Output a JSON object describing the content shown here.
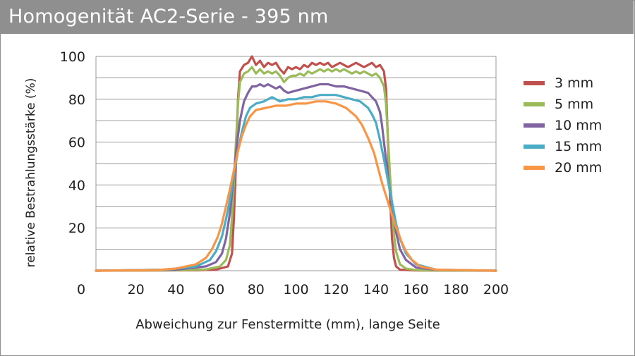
{
  "title": "Homogenität AC2-Serie - 395 nm",
  "chart_data": {
    "type": "line",
    "title": "Homogenität AC2-Serie - 395 nm",
    "xlabel": "Abweichung zur Fenstermitte (mm), lange Seite",
    "ylabel": "relative Bestrahlungsstärke (%)",
    "xlim": [
      0,
      200
    ],
    "ylim": [
      0,
      100
    ],
    "x_ticks": [
      "0",
      "20",
      "40",
      "60",
      "80",
      "100",
      "120",
      "140",
      "160",
      "180",
      "200"
    ],
    "y_ticks": [
      "20",
      "40",
      "60",
      "80",
      "100"
    ],
    "grid": "horizontal",
    "legend_position": "right",
    "series": [
      {
        "name": "3 mm",
        "color": "#c0504d",
        "x": [
          0,
          50,
          60,
          66,
          68,
          69,
          70,
          71,
          72,
          74,
          76,
          78,
          80,
          82,
          84,
          86,
          88,
          90,
          92,
          94,
          96,
          98,
          100,
          102,
          104,
          106,
          108,
          110,
          112,
          114,
          116,
          118,
          120,
          122,
          124,
          126,
          128,
          130,
          132,
          134,
          136,
          138,
          140,
          142,
          144,
          145,
          146,
          147,
          148,
          149,
          150,
          152,
          160,
          200
        ],
        "y": [
          0,
          0.2,
          0.5,
          2,
          8,
          25,
          50,
          80,
          93,
          96,
          97,
          100,
          96,
          98,
          95,
          97,
          96,
          97,
          94,
          92,
          95,
          94,
          95,
          94,
          96,
          95,
          97,
          96,
          97,
          96,
          97,
          95,
          96,
          97,
          96,
          95,
          96,
          97,
          96,
          95,
          96,
          97,
          95,
          96,
          93,
          85,
          60,
          35,
          15,
          6,
          2,
          0.5,
          0.1,
          0
        ]
      },
      {
        "name": "5 mm",
        "color": "#9bbb59",
        "x": [
          0,
          40,
          55,
          62,
          65,
          67,
          68,
          69,
          70,
          71,
          72,
          74,
          76,
          78,
          80,
          82,
          84,
          86,
          88,
          90,
          92,
          94,
          96,
          98,
          100,
          102,
          104,
          106,
          108,
          110,
          112,
          114,
          116,
          118,
          120,
          122,
          124,
          126,
          128,
          130,
          132,
          134,
          136,
          138,
          140,
          142,
          144,
          145,
          146,
          147,
          148,
          149,
          150,
          152,
          155,
          160,
          170,
          200
        ],
        "y": [
          0,
          0.2,
          0.6,
          2,
          5,
          12,
          25,
          42,
          60,
          78,
          88,
          92,
          93,
          95,
          92,
          94,
          92,
          93,
          92,
          93,
          91,
          88,
          90,
          91,
          91,
          92,
          91,
          93,
          92,
          93,
          94,
          93,
          94,
          93,
          94,
          93,
          94,
          93,
          92,
          93,
          92,
          93,
          92,
          91,
          92,
          90,
          86,
          78,
          62,
          45,
          30,
          17,
          9,
          3,
          1,
          0.3,
          0.1,
          0
        ]
      },
      {
        "name": "10 mm",
        "color": "#8064a2",
        "x": [
          0,
          40,
          55,
          60,
          63,
          65,
          67,
          68,
          69,
          70,
          71,
          72,
          74,
          76,
          78,
          80,
          82,
          84,
          86,
          88,
          90,
          92,
          94,
          96,
          100,
          104,
          108,
          112,
          116,
          120,
          124,
          128,
          132,
          136,
          138,
          140,
          142,
          143,
          144,
          145,
          146,
          147,
          148,
          149,
          150,
          152,
          155,
          160,
          170,
          200
        ],
        "y": [
          0,
          0.5,
          2,
          4,
          8,
          15,
          27,
          36,
          45,
          55,
          63,
          70,
          79,
          83,
          86,
          86,
          87,
          86,
          87,
          86,
          85,
          86,
          84,
          83,
          84,
          85,
          86,
          87,
          87,
          86,
          86,
          85,
          84,
          83,
          81,
          79,
          74,
          68,
          60,
          52,
          44,
          37,
          31,
          24,
          18,
          10,
          5,
          1.5,
          0.4,
          0
        ]
      },
      {
        "name": "15 mm",
        "color": "#4bacc6",
        "x": [
          0,
          35,
          50,
          57,
          60,
          63,
          65,
          67,
          69,
          71,
          73,
          75,
          77,
          80,
          84,
          88,
          92,
          96,
          100,
          104,
          108,
          112,
          116,
          120,
          124,
          128,
          132,
          136,
          138,
          140,
          142,
          144,
          146,
          148,
          150,
          152,
          155,
          160,
          170,
          200
        ],
        "y": [
          0,
          0.5,
          2,
          5,
          9,
          16,
          24,
          33,
          45,
          56,
          65,
          72,
          76,
          78,
          79,
          81,
          79,
          80,
          80,
          81,
          81,
          82,
          82,
          82,
          81,
          80,
          79,
          76,
          73,
          69,
          61,
          52,
          42,
          32,
          22,
          15,
          8,
          3,
          0.5,
          0
        ]
      },
      {
        "name": "20 mm",
        "color": "#f79646",
        "x": [
          0,
          30,
          40,
          50,
          55,
          58,
          61,
          63,
          65,
          67,
          69,
          71,
          73,
          75,
          77,
          80,
          85,
          90,
          95,
          100,
          105,
          110,
          115,
          120,
          125,
          130,
          133,
          136,
          139,
          141,
          143,
          145,
          147,
          149,
          151,
          153,
          155,
          158,
          162,
          170,
          200
        ],
        "y": [
          0,
          0.3,
          1,
          3,
          6,
          10,
          16,
          22,
          30,
          38,
          47,
          56,
          63,
          68,
          72,
          75,
          76,
          77,
          77,
          78,
          78,
          79,
          79,
          78,
          76,
          72,
          68,
          62,
          55,
          48,
          41,
          35,
          29,
          23,
          18,
          13,
          9,
          5,
          2,
          0.5,
          0
        ]
      }
    ]
  }
}
